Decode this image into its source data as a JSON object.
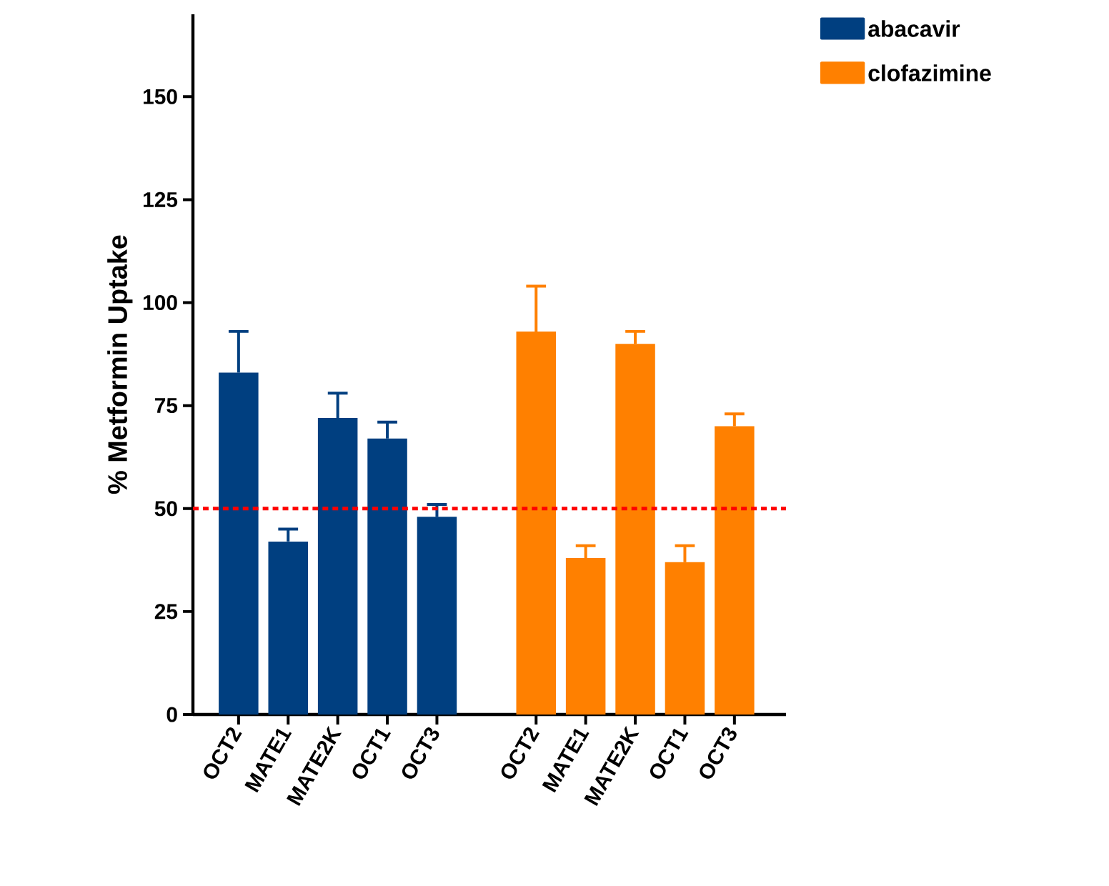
{
  "chart_data": {
    "type": "bar",
    "ylabel": "% Metformin Uptake",
    "categories": [
      "OCT2",
      "MATE1",
      "MATE2K",
      "OCT1",
      "OCT3",
      null,
      "OCT2",
      "MATE1",
      "MATE2K",
      "OCT1",
      "OCT3"
    ],
    "series": [
      {
        "name": "abacavir",
        "color": "#003f80",
        "values": [
          83,
          42,
          72,
          67,
          48,
          null,
          null,
          null,
          null,
          null,
          null
        ],
        "errors": [
          [
            83,
            93
          ],
          [
            42,
            45
          ],
          [
            72,
            78
          ],
          [
            67,
            71
          ],
          [
            48,
            51
          ],
          null,
          null,
          null,
          null,
          null,
          null
        ]
      },
      {
        "name": "clofazimine",
        "color": "#ff8000",
        "values": [
          null,
          null,
          null,
          null,
          null,
          null,
          93,
          38,
          90,
          37,
          70
        ],
        "errors": [
          null,
          null,
          null,
          null,
          null,
          null,
          [
            93,
            104
          ],
          [
            38,
            41
          ],
          [
            90,
            93
          ],
          [
            37,
            41
          ],
          [
            70,
            73
          ]
        ]
      }
    ],
    "ylim": [
      0,
      170
    ],
    "yticks": [
      0,
      25,
      50,
      75,
      100,
      125,
      150
    ],
    "ref_lines": [
      {
        "axis": "y",
        "value": 50,
        "color": "#ff0000",
        "line_style": "dotted"
      }
    ],
    "legend": "top right"
  }
}
